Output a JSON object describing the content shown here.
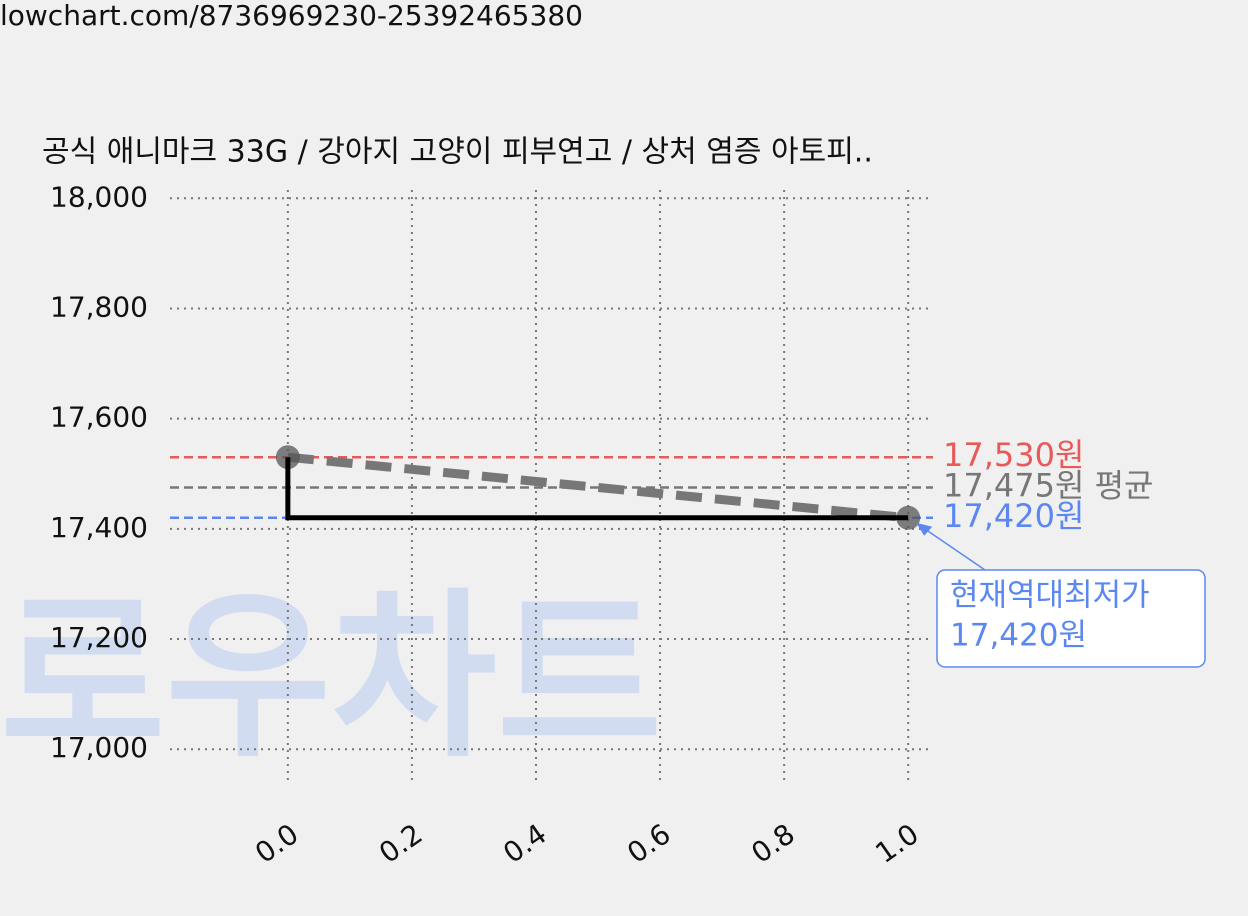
{
  "source_url": "lowchart.com/8736969230-25392465380",
  "chart_data": {
    "type": "line",
    "title": "공식 애니마크 33G / 강아지 고양이 피부연고 / 상처 염증 아토피..",
    "watermark": "로우차트",
    "xlim": [
      -0.19,
      1.04
    ],
    "ylim": [
      16935,
      18015
    ],
    "xticks": [
      {
        "value": 0,
        "label": "0.0"
      },
      0.2,
      0.4,
      0.6,
      0.8,
      {
        "value": 1,
        "label": "1.0"
      }
    ],
    "yticks": [
      {
        "value": 17000,
        "label": "17,000"
      },
      {
        "value": 17200,
        "label": "17,200"
      },
      {
        "value": 17400,
        "label": "17,400"
      },
      {
        "value": 17600,
        "label": "17,600"
      },
      {
        "value": 17800,
        "label": "17,800"
      },
      {
        "value": 18000,
        "label": "18,000"
      }
    ],
    "grid": true,
    "series": [
      {
        "color": "#777777",
        "style": "dashed",
        "markers": true,
        "x": [
          0,
          1
        ],
        "values": [
          17530,
          17420
        ]
      },
      {
        "color": "#000000",
        "style": "solid",
        "markers": false,
        "x": [
          0,
          0,
          1
        ],
        "values": [
          17530,
          17420,
          17420
        ]
      }
    ],
    "reference_lines": [
      {
        "value": 17530,
        "label": "17,530원",
        "color": "#e85a5a"
      },
      {
        "value": 17475,
        "label": "17,475원 평균",
        "color": "#777777"
      },
      {
        "value": 17420,
        "label": "17,420원",
        "color": "#5b88f0"
      }
    ],
    "annotation": {
      "x": 1,
      "y": 17420,
      "lines": [
        "현재역대최저가",
        "17,420원"
      ],
      "color": "#5b88f0"
    }
  }
}
